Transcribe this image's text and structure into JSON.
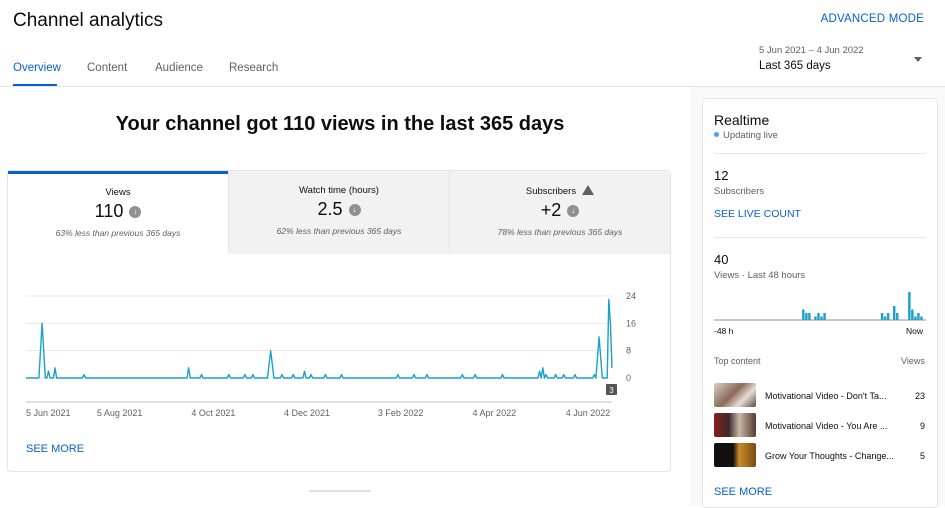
{
  "header": {
    "title": "Channel analytics",
    "advanced_mode": "ADVANCED MODE",
    "tabs": [
      {
        "label": "Overview",
        "active": true
      },
      {
        "label": "Content",
        "active": false
      },
      {
        "label": "Audience",
        "active": false
      },
      {
        "label": "Research",
        "active": false
      }
    ],
    "date_range": {
      "dates": "5 Jun 2021 – 4 Jun 2022",
      "label": "Last 365 days"
    }
  },
  "main": {
    "headline": "Your channel got 110 views in the last 365 days",
    "metrics": [
      {
        "label": "Views",
        "value": "110",
        "trend": "down",
        "sub": "63% less than previous 365 days"
      },
      {
        "label": "Watch time (hours)",
        "value": "2.5",
        "trend": "down",
        "sub": "62% less than previous 365 days"
      },
      {
        "label": "Subscribers",
        "value": "+2",
        "trend": "down",
        "sub": "78% less than previous 365 days",
        "warning": true
      }
    ],
    "see_more": "SEE MORE"
  },
  "chart_data": {
    "type": "line",
    "x_tick_labels": [
      "5 Jun 2021",
      "5 Aug 2021",
      "4 Oct 2021",
      "4 Dec 2021",
      "3 Feb 2022",
      "4 Apr 2022",
      "4 Jun 2022"
    ],
    "y_ticks": [
      0,
      8,
      16,
      24
    ],
    "ylim": [
      0,
      24
    ],
    "x_day_range": [
      0,
      364
    ],
    "end_marker": "3",
    "grid": true,
    "series": [
      {
        "color": "#1aa1c9",
        "points": [
          [
            0,
            0
          ],
          [
            8,
            0
          ],
          [
            9,
            8
          ],
          [
            10,
            16
          ],
          [
            11,
            8
          ],
          [
            12,
            0
          ],
          [
            13,
            0
          ],
          [
            14,
            2
          ],
          [
            15,
            0
          ],
          [
            16,
            0
          ],
          [
            17,
            0
          ],
          [
            18,
            3
          ],
          [
            19,
            0
          ],
          [
            20,
            0
          ],
          [
            21,
            0
          ],
          [
            22,
            0
          ],
          [
            35,
            0
          ],
          [
            36,
            1
          ],
          [
            37,
            0
          ],
          [
            50,
            0
          ],
          [
            51,
            0
          ],
          [
            52,
            0
          ],
          [
            100,
            0
          ],
          [
            101,
            3
          ],
          [
            102,
            0
          ],
          [
            108,
            0
          ],
          [
            109,
            1
          ],
          [
            110,
            0
          ],
          [
            125,
            0
          ],
          [
            126,
            1
          ],
          [
            127,
            0
          ],
          [
            135,
            0
          ],
          [
            136,
            1
          ],
          [
            137,
            0
          ],
          [
            140,
            0
          ],
          [
            141,
            1
          ],
          [
            142,
            0
          ],
          [
            150,
            0
          ],
          [
            151,
            4
          ],
          [
            152,
            8
          ],
          [
            153,
            4
          ],
          [
            154,
            0
          ],
          [
            158,
            0
          ],
          [
            159,
            1
          ],
          [
            160,
            0
          ],
          [
            165,
            0
          ],
          [
            166,
            1
          ],
          [
            167,
            0
          ],
          [
            172,
            0
          ],
          [
            173,
            2
          ],
          [
            174,
            0
          ],
          [
            176,
            0
          ],
          [
            177,
            1
          ],
          [
            178,
            0
          ],
          [
            185,
            0
          ],
          [
            186,
            1
          ],
          [
            187,
            0
          ],
          [
            195,
            0
          ],
          [
            196,
            1
          ],
          [
            197,
            0
          ],
          [
            230,
            0
          ],
          [
            231,
            1
          ],
          [
            232,
            0
          ],
          [
            240,
            0
          ],
          [
            241,
            1
          ],
          [
            242,
            0
          ],
          [
            248,
            0
          ],
          [
            249,
            1
          ],
          [
            250,
            0
          ],
          [
            270,
            0
          ],
          [
            271,
            1
          ],
          [
            272,
            0
          ],
          [
            278,
            0
          ],
          [
            279,
            1
          ],
          [
            280,
            0
          ],
          [
            295,
            0
          ],
          [
            296,
            1
          ],
          [
            297,
            0
          ],
          [
            318,
            0
          ],
          [
            319,
            2
          ],
          [
            320,
            0
          ],
          [
            321,
            3
          ],
          [
            322,
            0
          ],
          [
            323,
            1
          ],
          [
            324,
            0
          ],
          [
            328,
            0
          ],
          [
            329,
            1
          ],
          [
            330,
            0
          ],
          [
            333,
            0
          ],
          [
            334,
            1
          ],
          [
            335,
            0
          ],
          [
            340,
            0
          ],
          [
            341,
            1
          ],
          [
            342,
            0
          ],
          [
            352,
            0
          ],
          [
            353,
            1
          ],
          [
            354,
            0
          ],
          [
            355,
            6
          ],
          [
            356,
            12
          ],
          [
            357,
            6
          ],
          [
            358,
            0
          ],
          [
            359,
            0
          ],
          [
            361,
            0
          ],
          [
            362,
            23
          ],
          [
            363,
            16
          ],
          [
            364,
            3
          ]
        ]
      }
    ]
  },
  "realtime": {
    "title": "Realtime",
    "status": "Updating live",
    "subscribers_count": "12",
    "subscribers_label": "Subscribers",
    "see_live_count": "SEE LIVE COUNT",
    "views_count": "40",
    "views_label": "Views · Last 48 hours",
    "bars_axis_start": "-48 h",
    "bars_axis_end": "Now",
    "bars_48h": [
      0,
      0,
      0,
      0,
      0,
      0,
      0,
      0,
      0,
      0,
      0,
      0,
      0,
      0,
      0,
      0,
      0,
      0,
      0,
      0,
      0,
      0,
      0,
      0,
      0,
      0,
      0,
      0,
      0,
      3,
      2,
      2,
      0,
      1,
      2,
      1,
      2,
      0,
      0,
      0,
      0,
      0,
      0,
      0,
      0,
      0,
      0,
      0,
      0,
      0,
      0,
      0,
      0,
      0,
      0,
      2,
      1,
      2,
      0,
      4,
      2,
      0,
      0,
      0,
      8,
      3,
      1,
      2,
      1,
      0
    ],
    "top_content_label": "Top content",
    "views_col_label": "Views",
    "top_content": [
      {
        "title": "Motivational Video - Don't Ta...",
        "views": "23"
      },
      {
        "title": "Motivational Video - You Are ...",
        "views": "9"
      },
      {
        "title": "Grow Your Thoughts - Change...",
        "views": "5"
      }
    ],
    "see_more": "SEE MORE"
  },
  "colors": {
    "accent": "#065fd4",
    "chart_line": "#1aa1c9",
    "live_dot": "#3ea6ff"
  }
}
